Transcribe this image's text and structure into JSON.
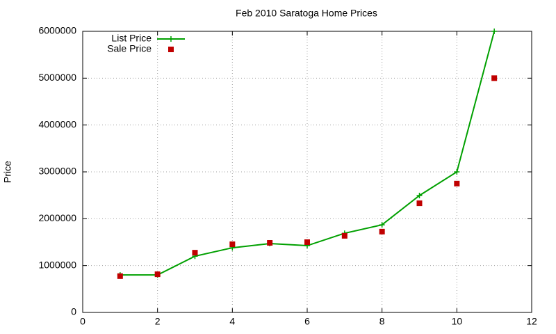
{
  "chart_data": {
    "type": "line",
    "title": "Feb 2010 Saratoga Home Prices",
    "y_label": "Price",
    "x": [
      1,
      2,
      3,
      4,
      5,
      6,
      7,
      8,
      9,
      10,
      11
    ],
    "series": [
      {
        "name": "List Price",
        "color": "#00a000",
        "line": true,
        "marker": "plus",
        "values": [
          800000,
          800000,
          1200000,
          1380000,
          1470000,
          1425000,
          1690000,
          1870000,
          2495000,
          3000000,
          6000000
        ]
      },
      {
        "name": "Sale Price",
        "color": "#c00000",
        "line": false,
        "marker": "square",
        "values": [
          775000,
          815000,
          1275000,
          1455000,
          1485000,
          1500000,
          1635000,
          1725000,
          2330000,
          2750000,
          5000000
        ]
      }
    ],
    "xlim": [
      0,
      12
    ],
    "xticks": [
      0,
      2,
      4,
      6,
      8,
      10,
      12
    ],
    "ylim": [
      0,
      6000000
    ],
    "yticks": [
      0,
      1000000,
      2000000,
      3000000,
      4000000,
      5000000,
      6000000
    ],
    "grid": true,
    "legend": "top-left"
  }
}
